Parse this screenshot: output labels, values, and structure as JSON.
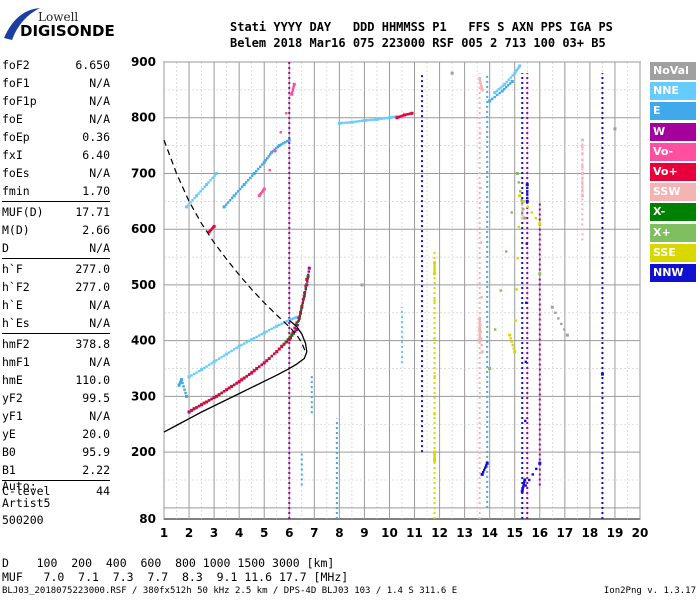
{
  "logo": {
    "top": "Lowell",
    "bottom": "DIGISONDE"
  },
  "header": {
    "line1": "Stati YYYY DAY   DDD HHMMSS P1   FFS S AXN PPS IGA PS",
    "line2": "Belem 2018 Mar16 075 223000 RSF 005 2 713 100 03+ B5"
  },
  "params": {
    "group1": [
      {
        "k": "foF2",
        "v": "6.650"
      },
      {
        "k": "foF1",
        "v": "N/A"
      },
      {
        "k": "foF1p",
        "v": "N/A"
      },
      {
        "k": "foE",
        "v": "N/A"
      },
      {
        "k": "foEp",
        "v": "0.36"
      },
      {
        "k": "fxI",
        "v": "6.40"
      },
      {
        "k": "foEs",
        "v": "N/A"
      },
      {
        "k": "fmin",
        "v": "1.70"
      }
    ],
    "group2": [
      {
        "k": "MUF(D)",
        "v": "17.71"
      },
      {
        "k": "M(D)",
        "v": "2.66"
      },
      {
        "k": "D",
        "v": "N/A"
      }
    ],
    "group3": [
      {
        "k": "h`F",
        "v": "277.0"
      },
      {
        "k": "h`F2",
        "v": "277.0"
      },
      {
        "k": "h`E",
        "v": "N/A"
      },
      {
        "k": "h`Es",
        "v": "N/A"
      }
    ],
    "group4": [
      {
        "k": "hmF2",
        "v": "378.8"
      },
      {
        "k": "hmF1",
        "v": "N/A"
      },
      {
        "k": "hmE",
        "v": "110.0"
      },
      {
        "k": "yF2",
        "v": "99.5"
      },
      {
        "k": "yF1",
        "v": "N/A"
      },
      {
        "k": "yE",
        "v": "20.0"
      },
      {
        "k": "B0",
        "v": "95.9"
      },
      {
        "k": "B1",
        "v": "2.22"
      }
    ],
    "group5": [
      {
        "k": "C-level",
        "v": "44"
      }
    ]
  },
  "auto": {
    "l1": "Auto:",
    "l2": "Artist5",
    "l3": "500200"
  },
  "legend": [
    {
      "label": "NoVal",
      "color": "#a0a0a0"
    },
    {
      "label": "NNE",
      "color": "#66ccff"
    },
    {
      "label": "E",
      "color": "#3fa9ec"
    },
    {
      "label": "W",
      "color": "#a4009c"
    },
    {
      "label": "Vo-",
      "color": "#ff4fa0"
    },
    {
      "label": "Vo+",
      "color": "#e8003a"
    },
    {
      "label": "SSW",
      "color": "#f4b4b4"
    },
    {
      "label": "X-",
      "color": "#008000"
    },
    {
      "label": "X+",
      "color": "#7fbf5f"
    },
    {
      "label": "SSE",
      "color": "#d8d800"
    },
    {
      "label": "NNW",
      "color": "#1010d0"
    }
  ],
  "footer": {
    "d_line": "D    100  200  400  600  800 1000 1500 3000 [km]",
    "muf_line": "MUF   7.0  7.1  7.3  7.7  8.3  9.1 11.6 17.7 [MHz]",
    "file_line": "BLJ03_2018075223000.RSF / 380fx512h 50 kHz 2.5 km / DPS-4D BLJ03 103 / 1.4 S 311.6 E",
    "version": "Ion2Png v. 1.3.17"
  },
  "chart_data": {
    "type": "scatter",
    "xlim": [
      1,
      20
    ],
    "ylim": [
      80,
      900
    ],
    "x_ticks": [
      1,
      2,
      3,
      4,
      5,
      6,
      7,
      8,
      9,
      10,
      11,
      12,
      13,
      14,
      15,
      16,
      17,
      18,
      19,
      20
    ],
    "y_ticks": [
      80,
      200,
      300,
      400,
      500,
      600,
      700,
      800,
      900
    ],
    "grid": true,
    "x_grid_step": 0.5,
    "y_grid_step": 50,
    "series": [
      {
        "color": "#66ccff",
        "style": "dots",
        "points": [
          [
            2.0,
            335
          ],
          [
            2.5,
            348
          ],
          [
            3.0,
            362
          ],
          [
            3.5,
            376
          ],
          [
            4.0,
            390
          ],
          [
            4.5,
            402
          ],
          [
            5.0,
            414
          ],
          [
            5.5,
            426
          ],
          [
            6.0,
            437
          ],
          [
            6.3,
            442
          ],
          [
            1.9,
            640
          ],
          [
            2.3,
            660
          ],
          [
            2.7,
            680
          ],
          [
            3.1,
            700
          ],
          [
            8.0,
            790
          ],
          [
            8.5,
            792
          ],
          [
            9.0,
            795
          ],
          [
            9.5,
            797
          ],
          [
            10.0,
            800
          ],
          [
            10.3,
            802
          ],
          [
            14.2,
            845
          ],
          [
            14.6,
            860
          ],
          [
            15.0,
            880
          ],
          [
            15.2,
            893
          ]
        ]
      },
      {
        "color": "#3fa9ec",
        "style": "dots",
        "points": [
          [
            3.4,
            640
          ],
          [
            3.8,
            660
          ],
          [
            4.2,
            680
          ],
          [
            4.6,
            700
          ],
          [
            5.0,
            720
          ],
          [
            5.3,
            738
          ],
          [
            5.6,
            750
          ],
          [
            6.0,
            760
          ],
          [
            1.9,
            300
          ],
          [
            1.7,
            330
          ],
          [
            1.6,
            320
          ],
          [
            14.0,
            830
          ],
          [
            14.5,
            848
          ],
          [
            14.9,
            865
          ]
        ]
      },
      {
        "color": "#a4009c",
        "style": "dots",
        "points": [
          [
            2.0,
            272
          ],
          [
            2.5,
            285
          ],
          [
            3.0,
            298
          ],
          [
            3.5,
            312
          ],
          [
            4.0,
            326
          ],
          [
            4.5,
            342
          ],
          [
            5.0,
            360
          ],
          [
            5.5,
            380
          ],
          [
            6.0,
            402
          ],
          [
            6.3,
            420
          ],
          [
            6.5,
            460
          ],
          [
            6.7,
            500
          ],
          [
            6.8,
            530
          ]
        ]
      },
      {
        "color": "#008000",
        "style": "dots",
        "points": [
          [
            2.2,
            278
          ],
          [
            2.7,
            290
          ],
          [
            3.2,
            303
          ],
          [
            3.7,
            318
          ],
          [
            4.2,
            333
          ],
          [
            4.7,
            350
          ],
          [
            5.2,
            368
          ],
          [
            5.7,
            390
          ],
          [
            6.1,
            410
          ],
          [
            6.4,
            440
          ],
          [
            6.6,
            480
          ],
          [
            6.75,
            515
          ]
        ]
      },
      {
        "color": "#e8003a",
        "style": "dots",
        "points": [
          [
            2.1,
            275
          ],
          [
            2.6,
            288
          ],
          [
            3.1,
            300
          ],
          [
            3.6,
            315
          ],
          [
            4.1,
            330
          ],
          [
            4.6,
            346
          ],
          [
            5.1,
            364
          ],
          [
            5.6,
            385
          ],
          [
            6.05,
            405
          ],
          [
            6.45,
            450
          ],
          [
            6.7,
            510
          ],
          [
            10.3,
            800
          ],
          [
            10.6,
            805
          ],
          [
            10.9,
            808
          ],
          [
            2.8,
            595
          ],
          [
            3.0,
            605
          ]
        ]
      },
      {
        "color": "#ff4fa0",
        "style": "dots",
        "points": [
          [
            4.8,
            660
          ],
          [
            5.0,
            672
          ],
          [
            6.1,
            842
          ],
          [
            6.2,
            860
          ]
        ]
      },
      {
        "color": "#f4b4b4",
        "style": "dots",
        "points": [
          [
            13.6,
            400
          ],
          [
            13.6,
            420
          ],
          [
            13.6,
            440
          ],
          [
            13.7,
            380
          ],
          [
            13.6,
            870
          ],
          [
            13.7,
            850
          ],
          [
            17.7,
            660
          ],
          [
            17.7,
            700
          ],
          [
            17.7,
            760
          ],
          [
            15.3,
            620
          ],
          [
            15.3,
            650
          ]
        ]
      },
      {
        "color": "#d8d800",
        "style": "dots",
        "points": [
          [
            11.8,
            520
          ],
          [
            11.8,
            540
          ],
          [
            11.8,
            200
          ],
          [
            11.8,
            185
          ],
          [
            14.8,
            410
          ],
          [
            15.0,
            380
          ],
          [
            15.2,
            660
          ],
          [
            16.0,
            610
          ]
        ]
      },
      {
        "color": "#1010d0",
        "style": "dots",
        "points": [
          [
            15.5,
            650
          ],
          [
            15.5,
            680
          ],
          [
            15.4,
            150
          ],
          [
            15.3,
            130
          ],
          [
            16.0,
            180
          ],
          [
            18.5,
            340
          ],
          [
            13.9,
            180
          ],
          [
            13.7,
            160
          ]
        ]
      },
      {
        "color": "#7fbf5f",
        "style": "dots",
        "points": [
          [
            15.4,
            620
          ],
          [
            15.1,
            700
          ],
          [
            14.0,
            350
          ],
          [
            16.0,
            520
          ]
        ]
      },
      {
        "color": "#a0a0a0",
        "style": "dots",
        "points": [
          [
            17.1,
            410
          ],
          [
            16.5,
            460
          ],
          [
            19.0,
            780
          ],
          [
            12.5,
            880
          ],
          [
            8.9,
            500
          ]
        ]
      }
    ],
    "profile_solid": [
      [
        1.0,
        236
      ],
      [
        1.5,
        248
      ],
      [
        2.0,
        260
      ],
      [
        2.5,
        272
      ],
      [
        3.0,
        283
      ],
      [
        3.5,
        294
      ],
      [
        4.0,
        305
      ],
      [
        4.5,
        316
      ],
      [
        5.0,
        327
      ],
      [
        5.5,
        338
      ],
      [
        6.0,
        350
      ],
      [
        6.3,
        358
      ],
      [
        6.6,
        368
      ],
      [
        6.7,
        380
      ],
      [
        6.65,
        395
      ],
      [
        6.5,
        412
      ],
      [
        6.3,
        425
      ],
      [
        6.1,
        433
      ],
      [
        6.0,
        436
      ]
    ],
    "muf_dashed": [
      [
        1.0,
        760
      ],
      [
        1.5,
        700
      ],
      [
        2.0,
        650
      ],
      [
        2.5,
        610
      ],
      [
        3.0,
        576
      ],
      [
        3.5,
        546
      ],
      [
        4.0,
        518
      ],
      [
        4.5,
        492
      ],
      [
        5.0,
        468
      ],
      [
        5.5,
        446
      ],
      [
        6.0,
        425
      ],
      [
        6.3,
        410
      ],
      [
        6.5,
        396
      ],
      [
        6.6,
        385
      ],
      [
        6.65,
        378
      ]
    ],
    "vertical_streaks": [
      {
        "x": 6.0,
        "y0": 80,
        "y1": 900,
        "color": "#a4009c"
      },
      {
        "x": 6.5,
        "y0": 140,
        "y1": 200,
        "color": "#3fa9ec"
      },
      {
        "x": 6.9,
        "y0": 270,
        "y1": 340,
        "color": "#3fa9ec"
      },
      {
        "x": 7.9,
        "y0": 80,
        "y1": 260,
        "color": "#3fa9ec"
      },
      {
        "x": 10.5,
        "y0": 360,
        "y1": 460,
        "color": "#66ccff"
      },
      {
        "x": 11.3,
        "y0": 200,
        "y1": 880,
        "color": "#1010d0"
      },
      {
        "x": 11.8,
        "y0": 80,
        "y1": 560,
        "color": "#d8d800"
      },
      {
        "x": 13.6,
        "y0": 80,
        "y1": 880,
        "color": "#f4b4b4"
      },
      {
        "x": 13.9,
        "y0": 100,
        "y1": 880,
        "color": "#3fa9ec"
      },
      {
        "x": 15.3,
        "y0": 80,
        "y1": 880,
        "color": "#1010d0"
      },
      {
        "x": 15.5,
        "y0": 80,
        "y1": 880,
        "color": "#a4009c"
      },
      {
        "x": 16.0,
        "y0": 140,
        "y1": 650,
        "color": "#a4009c"
      },
      {
        "x": 17.7,
        "y0": 580,
        "y1": 760,
        "color": "#f4b4b4"
      },
      {
        "x": 18.5,
        "y0": 80,
        "y1": 880,
        "color": "#1010d0"
      }
    ]
  }
}
